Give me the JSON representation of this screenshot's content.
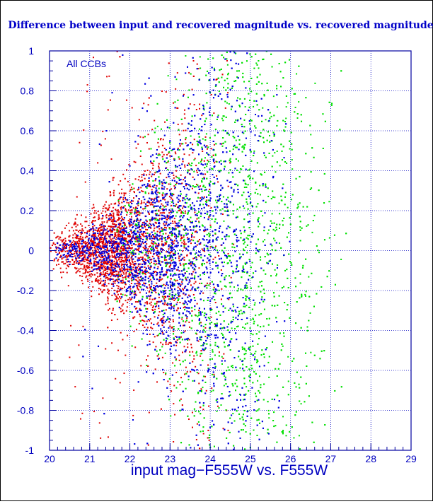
{
  "chart_data": {
    "type": "scatter",
    "title": "Difference between input and recovered magnitude vs. recovered magnitude",
    "xlabel": "input mag−F555W vs. F555W",
    "ylabel": "",
    "xlim": [
      20,
      29
    ],
    "ylim": [
      -1,
      1
    ],
    "x_ticks": [
      "20",
      "21",
      "22",
      "23",
      "24",
      "25",
      "26",
      "27",
      "28",
      "29"
    ],
    "y_ticks": [
      "-1",
      "-0.8",
      "-0.6",
      "-0.4",
      "-0.2",
      "0",
      "0.2",
      "0.4",
      "0.6",
      "0.8",
      "1"
    ],
    "grid": true,
    "annotation": "All CCBs",
    "series": [
      {
        "color": "#e00000",
        "distribution": {
          "x_min": 20.0,
          "x_max": 24.6,
          "x_peak": 21.8,
          "scatter_base": 0.05,
          "scatter_growth": 0.09
        }
      },
      {
        "color": "#00e000",
        "distribution": {
          "x_min": 21.5,
          "x_max": 27.4,
          "x_peak": 24.8,
          "scatter_base": 0.04,
          "scatter_growth": 0.1
        }
      },
      {
        "color": "#0000e0",
        "distribution": {
          "x_min": 20.0,
          "x_max": 26.0,
          "x_peak": 23.0,
          "scatter_base": 0.02,
          "scatter_growth": 0.08
        }
      }
    ],
    "colors": {
      "frame": "#0000a0",
      "grid": "#0000c0",
      "text": "#0000c0",
      "title": "#0000c8"
    }
  }
}
